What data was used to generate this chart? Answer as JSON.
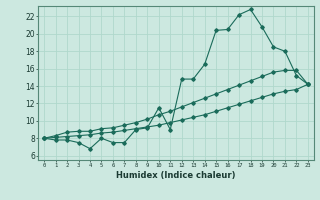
{
  "title": "",
  "xlabel": "Humidex (Indice chaleur)",
  "ylabel": "",
  "bg_color": "#cce8e0",
  "line_color": "#1a6b5a",
  "grid_color": "#b0d8cc",
  "xlim": [
    -0.5,
    23.5
  ],
  "ylim": [
    5.5,
    23.2
  ],
  "xticks": [
    0,
    1,
    2,
    3,
    4,
    5,
    6,
    7,
    8,
    9,
    10,
    11,
    12,
    13,
    14,
    15,
    16,
    17,
    18,
    19,
    20,
    21,
    22,
    23
  ],
  "yticks": [
    6,
    8,
    10,
    12,
    14,
    16,
    18,
    20,
    22
  ],
  "line1_x": [
    0,
    1,
    2,
    3,
    4,
    5,
    6,
    7,
    8,
    9,
    10,
    11,
    12,
    13,
    14,
    15,
    16,
    17,
    18,
    19,
    20,
    21,
    22,
    23
  ],
  "line1_y": [
    8.0,
    7.8,
    7.8,
    7.5,
    6.8,
    8.0,
    7.5,
    7.5,
    9.0,
    9.2,
    11.5,
    9.0,
    14.8,
    14.8,
    16.5,
    20.4,
    20.5,
    22.2,
    22.8,
    20.8,
    18.5,
    18.0,
    15.2,
    14.2
  ],
  "line2_x": [
    0,
    1,
    2,
    3,
    4,
    5,
    6,
    7,
    8,
    9,
    10,
    11,
    12,
    13,
    14,
    15,
    16,
    17,
    18,
    19,
    20,
    21,
    22,
    23
  ],
  "line2_y": [
    8.0,
    8.3,
    8.7,
    8.8,
    8.8,
    9.1,
    9.2,
    9.5,
    9.8,
    10.2,
    10.7,
    11.1,
    11.6,
    12.1,
    12.6,
    13.1,
    13.6,
    14.1,
    14.6,
    15.1,
    15.6,
    15.8,
    15.8,
    14.2
  ],
  "line3_x": [
    0,
    1,
    2,
    3,
    4,
    5,
    6,
    7,
    8,
    9,
    10,
    11,
    12,
    13,
    14,
    15,
    16,
    17,
    18,
    19,
    20,
    21,
    22,
    23
  ],
  "line3_y": [
    8.0,
    8.1,
    8.2,
    8.3,
    8.4,
    8.6,
    8.7,
    8.9,
    9.1,
    9.3,
    9.5,
    9.8,
    10.1,
    10.4,
    10.7,
    11.1,
    11.5,
    11.9,
    12.3,
    12.7,
    13.1,
    13.4,
    13.6,
    14.2
  ]
}
